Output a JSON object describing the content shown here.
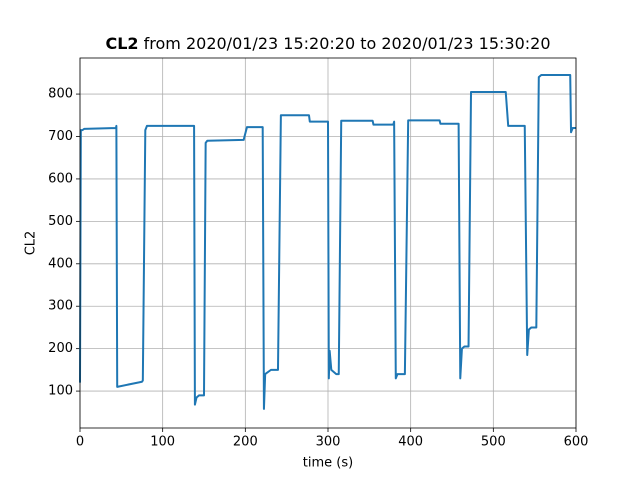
{
  "chart_data": {
    "type": "line",
    "title": {
      "bold": "CL2",
      "text": "from 2020/01/23 15:20:20 to 2020/01/23 15:30:20"
    },
    "x_label": "time (s)",
    "y_label": "CL2",
    "x": [
      0,
      1,
      3,
      5,
      43.5,
      44,
      45,
      75,
      76,
      79,
      81,
      138,
      139,
      141,
      144,
      150,
      152,
      154,
      198,
      199,
      202,
      221,
      222.5,
      224,
      231,
      239.5,
      243,
      277,
      278,
      300,
      301,
      302,
      304,
      310,
      313,
      316,
      354,
      355,
      379,
      380,
      382,
      384,
      393,
      397,
      435,
      436,
      458,
      460,
      462,
      465,
      470,
      473,
      515,
      518,
      538,
      541,
      543,
      546,
      552,
      555,
      558,
      593,
      594,
      596,
      600
    ],
    "series": [
      {
        "name": "CL2",
        "color": "#1f77b4",
        "values": [
          120,
          715,
          715,
          718,
          720,
          725,
          110,
          122,
          125,
          715,
          725,
          725,
          68,
          85,
          90,
          90,
          685,
          690,
          692,
          700,
          722,
          722,
          58,
          140,
          150,
          150,
          750,
          750,
          735,
          735,
          130,
          195,
          150,
          140,
          140,
          737,
          737,
          728,
          728,
          735,
          130,
          140,
          140,
          738,
          738,
          730,
          730,
          130,
          200,
          205,
          205,
          805,
          805,
          725,
          725,
          185,
          245,
          250,
          250,
          840,
          845,
          845,
          710,
          720,
          720
        ]
      }
    ],
    "xlim": [
      0,
      600
    ],
    "xticks": [
      0,
      100,
      200,
      300,
      400,
      500,
      600
    ],
    "ylim": [
      13,
      885
    ],
    "yticks": [
      100,
      200,
      300,
      400,
      500,
      600,
      700,
      800
    ],
    "grid": true
  }
}
